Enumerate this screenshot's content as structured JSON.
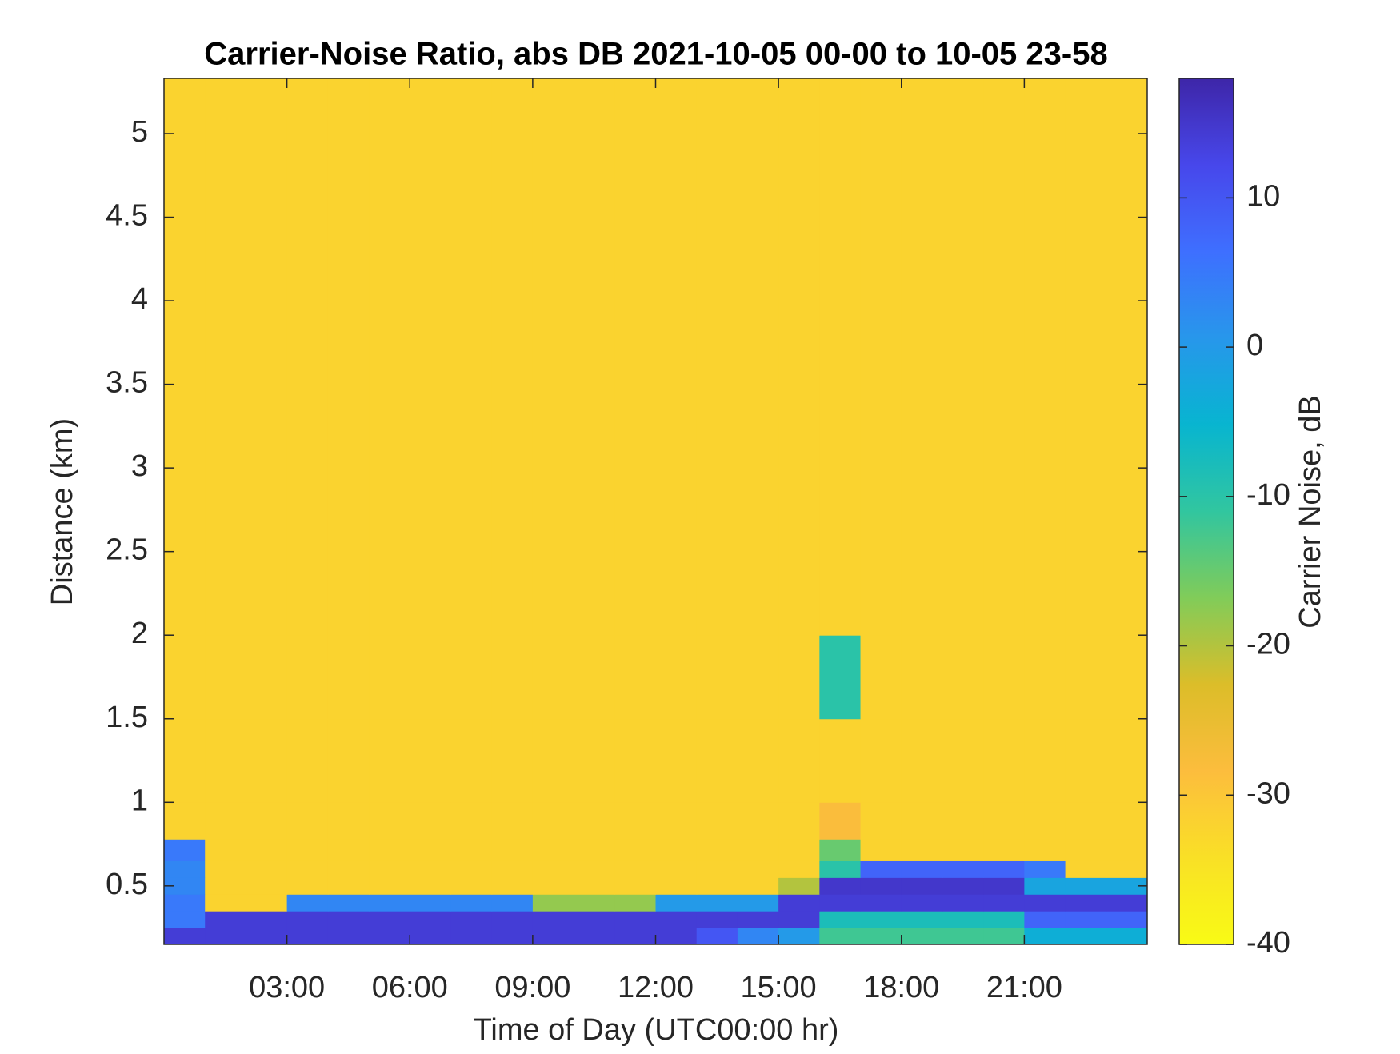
{
  "chart_data": {
    "type": "heatmap",
    "title": "Carrier-Noise Ratio, abs DB 2021-10-05 00-00 to 10-05 23-58",
    "x_label": "Time of Day (UTC00:00 hr)",
    "y_label": "Distance (km)",
    "colorbar_label": "Carrier Noise, dB",
    "colormap": "parula-reversed",
    "xlim": [
      0,
      24
    ],
    "ylim": [
      0.15,
      5.33
    ],
    "clim": [
      -40,
      18
    ],
    "xticks": [
      {
        "value": 3,
        "label": "03:00"
      },
      {
        "value": 6,
        "label": "06:00"
      },
      {
        "value": 9,
        "label": "09:00"
      },
      {
        "value": 12,
        "label": "12:00"
      },
      {
        "value": 15,
        "label": "15:00"
      },
      {
        "value": 18,
        "label": "18:00"
      },
      {
        "value": 21,
        "label": "21:00"
      }
    ],
    "yticks": [
      0.5,
      1,
      1.5,
      2,
      2.5,
      3,
      3.5,
      4,
      4.5,
      5
    ],
    "cticks": [
      -40,
      -30,
      -20,
      -10,
      0,
      10
    ],
    "x_edges": [
      0,
      1,
      2,
      3,
      4,
      5,
      6,
      7,
      8,
      9,
      10,
      11,
      12,
      13,
      14,
      15,
      16,
      17,
      18,
      19,
      20,
      21,
      22,
      23,
      24
    ],
    "y_edges": [
      0.15,
      0.25,
      0.35,
      0.45,
      0.55,
      0.65,
      0.78,
      1.0,
      1.5,
      2.0,
      5.33
    ],
    "z": [
      [
        14,
        14,
        14,
        14,
        14,
        14,
        14,
        14,
        14,
        14,
        14,
        14,
        14,
        10,
        3,
        0,
        -12,
        -12,
        -12,
        -12,
        -12,
        -4,
        -4,
        -4
      ],
      [
        5,
        14,
        14,
        14,
        14,
        14,
        14,
        14,
        14,
        14,
        14,
        14,
        14,
        14,
        14,
        14,
        -8,
        -8,
        -8,
        -8,
        -8,
        8,
        8,
        8
      ],
      [
        5,
        -32,
        -32,
        3,
        3,
        3,
        3,
        3,
        3,
        -18,
        -18,
        -18,
        0,
        0,
        0,
        14,
        14,
        14,
        14,
        14,
        14,
        14,
        14,
        14
      ],
      [
        3,
        -32,
        -32,
        -32,
        -32,
        -32,
        -32,
        -32,
        -32,
        -32,
        -32,
        -32,
        -32,
        -32,
        -32,
        -20,
        15,
        15,
        15,
        15,
        15,
        -2,
        -2,
        -2
      ],
      [
        3,
        -32,
        -32,
        -32,
        -32,
        -32,
        -32,
        -32,
        -32,
        -32,
        -32,
        -32,
        -32,
        -32,
        -32,
        -32,
        -10,
        8,
        8,
        8,
        8,
        5,
        -32,
        -32
      ],
      [
        5,
        -32,
        -32,
        -32,
        -32,
        -32,
        -32,
        -32,
        -32,
        -32,
        -32,
        -32,
        -32,
        -32,
        -32,
        -32,
        -15,
        -32,
        -32,
        -32,
        -32,
        -32,
        -32,
        -32
      ],
      [
        -32,
        -32,
        -32,
        -32,
        -32,
        -32,
        -32,
        -32,
        -32,
        -32,
        -32,
        -32,
        -32,
        -32,
        -32,
        -32,
        -28,
        -32,
        -32,
        -32,
        -32,
        -32,
        -32,
        -32
      ],
      [
        -32,
        -32,
        -32,
        -32,
        -32,
        -32,
        -32,
        -32,
        -32,
        -32,
        -32,
        -32,
        -32,
        -32,
        -32,
        -32,
        -32,
        -32,
        -32,
        -32,
        -32,
        -32,
        -32,
        -32
      ],
      [
        -32,
        -32,
        -32,
        -32,
        -32,
        -32,
        -32,
        -32,
        -32,
        -32,
        -32,
        -32,
        -32,
        -32,
        -32,
        -32,
        -10,
        -32,
        -32,
        -32,
        -32,
        -32,
        -32,
        -32
      ],
      [
        -32,
        -32,
        -32,
        -32,
        -32,
        -32,
        -32,
        -32,
        -32,
        -32,
        -32,
        -32,
        -32,
        -32,
        -32,
        -32,
        -32,
        -32,
        -32,
        -32,
        -32,
        -32,
        -32,
        -32
      ]
    ]
  }
}
